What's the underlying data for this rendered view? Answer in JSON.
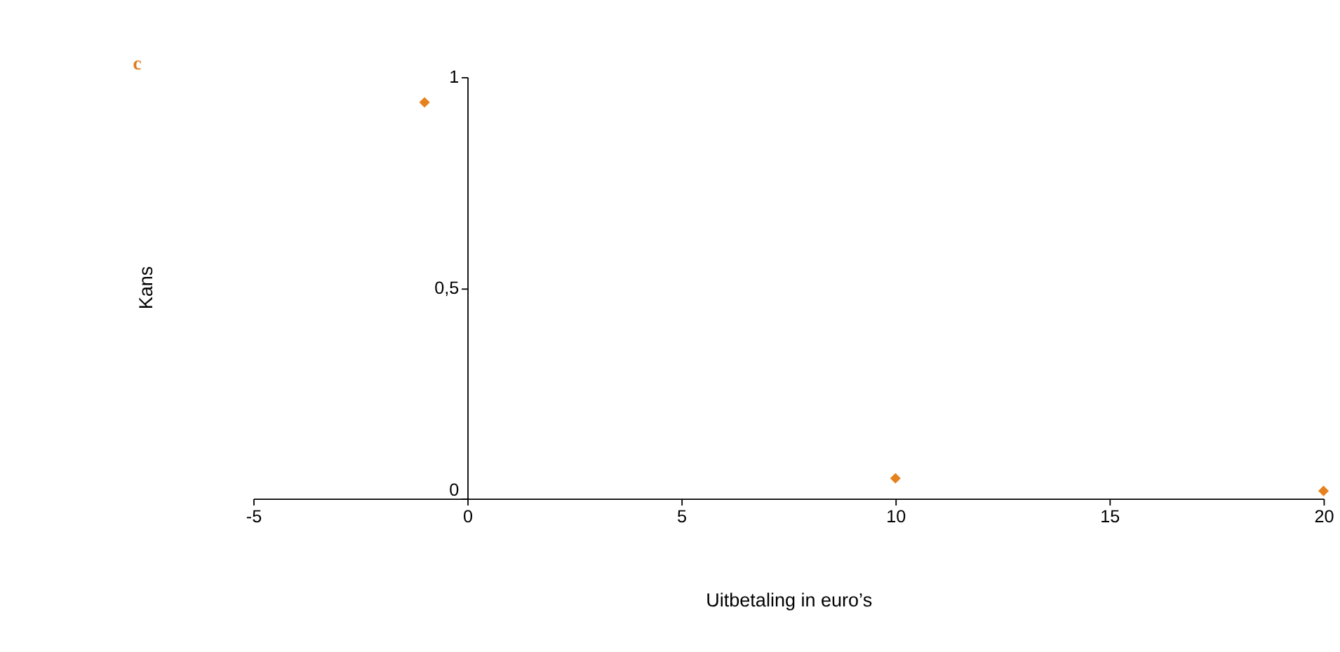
{
  "chart_data": {
    "type": "scatter",
    "xlabel": "Uitbetaling in euro’s",
    "ylabel": "Kans",
    "annotations": [
      "c"
    ],
    "x": [
      -1,
      10,
      20
    ],
    "series": [
      {
        "color": "#e6821e",
        "values": [
          0.94,
          0.048,
          0.018
        ]
      }
    ],
    "xlim": [
      -5,
      20
    ],
    "xticks": [
      -5,
      0,
      5,
      10,
      15,
      20
    ],
    "ylim": [
      0,
      1
    ],
    "yticks": [
      0,
      {
        "value": 0.5,
        "label": "0,5"
      },
      1
    ],
    "marker": "diamond",
    "grid": false,
    "legend": false
  }
}
